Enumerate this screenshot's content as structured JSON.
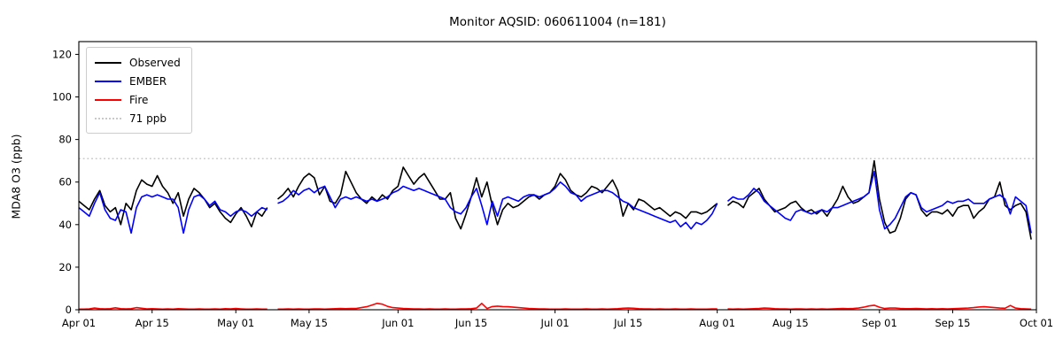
{
  "title": "Monitor AQSID: 060611004 (n=181)",
  "chart_data": {
    "type": "line",
    "title": "Monitor AQSID: 060611004 (n=181)",
    "xlabel": "",
    "ylabel": "MDA8 O3 (ppb)",
    "ylim": [
      0,
      126
    ],
    "yticks": [
      0,
      20,
      40,
      60,
      80,
      100,
      120
    ],
    "grid": false,
    "legend_position": "upper left",
    "x_days_total": 183,
    "x_ticks": [
      {
        "day": 0,
        "label": "Apr 01"
      },
      {
        "day": 14,
        "label": "Apr 15"
      },
      {
        "day": 30,
        "label": "May 01"
      },
      {
        "day": 44,
        "label": "May 15"
      },
      {
        "day": 61,
        "label": "Jun 01"
      },
      {
        "day": 75,
        "label": "Jun 15"
      },
      {
        "day": 91,
        "label": "Jul 01"
      },
      {
        "day": 105,
        "label": "Jul 15"
      },
      {
        "day": 122,
        "label": "Aug 01"
      },
      {
        "day": 136,
        "label": "Aug 15"
      },
      {
        "day": 153,
        "label": "Sep 01"
      },
      {
        "day": 167,
        "label": "Sep 15"
      },
      {
        "day": 183,
        "label": "Oct 01"
      }
    ],
    "threshold_line": {
      "label": "71 ppb",
      "value": 71,
      "color": "#c9c9c9",
      "linestyle": "dotted"
    },
    "series": [
      {
        "name": "Observed",
        "color": "#000000",
        "linestyle": "solid",
        "values": [
          51,
          49,
          47,
          52,
          56,
          49,
          46,
          48,
          40,
          50,
          47,
          56,
          61,
          59,
          58,
          63,
          58,
          55,
          50,
          55,
          44,
          52,
          57,
          55,
          52,
          48,
          50,
          46,
          43,
          41,
          45,
          48,
          44,
          39,
          46,
          44,
          48,
          null,
          52,
          54,
          57,
          53,
          58,
          62,
          64,
          62,
          54,
          58,
          51,
          50,
          54,
          65,
          60,
          55,
          52,
          50,
          53,
          51,
          54,
          52,
          56,
          58,
          67,
          63,
          59,
          62,
          64,
          60,
          56,
          52,
          52,
          55,
          43,
          38,
          45,
          53,
          62,
          53,
          60,
          49,
          40,
          47,
          50,
          48,
          49,
          51,
          53,
          54,
          52,
          54,
          55,
          58,
          64,
          61,
          56,
          54,
          53,
          55,
          58,
          57,
          55,
          58,
          61,
          56,
          44,
          50,
          47,
          52,
          51,
          49,
          47,
          48,
          46,
          44,
          46,
          45,
          43,
          46,
          46,
          45,
          46,
          48,
          50,
          null,
          49,
          51,
          50,
          48,
          53,
          55,
          57,
          52,
          49,
          46,
          47,
          48,
          50,
          51,
          48,
          46,
          47,
          45,
          47,
          44,
          48,
          52,
          58,
          53,
          50,
          51,
          53,
          55,
          70,
          52,
          41,
          36,
          37,
          43,
          52,
          55,
          54,
          47,
          44,
          46,
          46,
          45,
          47,
          44,
          48,
          49,
          49,
          43,
          46,
          48,
          52,
          53,
          60,
          49,
          47,
          49,
          50,
          46,
          33
        ]
      },
      {
        "name": "EMBER",
        "color": "#0000ff",
        "linestyle": "solid",
        "values": [
          48,
          46,
          44,
          50,
          55,
          47,
          43,
          42,
          47,
          46,
          36,
          48,
          53,
          54,
          53,
          54,
          53,
          52,
          52,
          48,
          36,
          47,
          53,
          54,
          52,
          49,
          51,
          47,
          46,
          44,
          46,
          47,
          46,
          44,
          46,
          48,
          47,
          null,
          50,
          51,
          53,
          56,
          54,
          56,
          57,
          55,
          57,
          58,
          53,
          48,
          52,
          53,
          52,
          53,
          52,
          51,
          52,
          51,
          52,
          53,
          55,
          56,
          58,
          57,
          56,
          57,
          56,
          55,
          54,
          53,
          52,
          48,
          46,
          45,
          48,
          53,
          57,
          49,
          40,
          51,
          44,
          52,
          53,
          52,
          51,
          53,
          54,
          54,
          53,
          54,
          55,
          57,
          60,
          58,
          55,
          54,
          51,
          53,
          54,
          55,
          56,
          56,
          55,
          53,
          51,
          50,
          48,
          47,
          46,
          45,
          44,
          43,
          42,
          41,
          42,
          39,
          41,
          38,
          41,
          40,
          42,
          45,
          50,
          null,
          51,
          53,
          52,
          52,
          54,
          57,
          55,
          51,
          49,
          47,
          45,
          43,
          42,
          46,
          47,
          46,
          45,
          46,
          47,
          46,
          48,
          48,
          49,
          50,
          51,
          52,
          53,
          55,
          65,
          47,
          38,
          40,
          43,
          48,
          53,
          55,
          54,
          48,
          46,
          47,
          48,
          49,
          51,
          50,
          51,
          51,
          52,
          50,
          50,
          50,
          52,
          53,
          54,
          52,
          45,
          53,
          51,
          49,
          36
        ]
      },
      {
        "name": "Fire",
        "color": "#ff0000",
        "linestyle": "solid",
        "values": [
          0.3,
          0.3,
          0.4,
          0.8,
          0.5,
          0.4,
          0.5,
          0.9,
          0.5,
          0.4,
          0.5,
          1.0,
          0.7,
          0.4,
          0.5,
          0.4,
          0.3,
          0.4,
          0.3,
          0.5,
          0.4,
          0.3,
          0.3,
          0.4,
          0.3,
          0.3,
          0.4,
          0.3,
          0.5,
          0.4,
          0.6,
          0.4,
          0.3,
          0.3,
          0.4,
          0.3,
          0.3,
          null,
          0.3,
          0.3,
          0.4,
          0.3,
          0.4,
          0.3,
          0.3,
          0.4,
          0.4,
          0.3,
          0.4,
          0.5,
          0.6,
          0.5,
          0.6,
          0.6,
          1.0,
          1.4,
          2.2,
          3.0,
          2.6,
          1.6,
          1.0,
          0.8,
          0.6,
          0.5,
          0.4,
          0.4,
          0.3,
          0.4,
          0.3,
          0.3,
          0.4,
          0.3,
          0.3,
          0.4,
          0.4,
          0.5,
          0.8,
          3.0,
          0.6,
          1.5,
          1.7,
          1.5,
          1.4,
          1.2,
          1.0,
          0.8,
          0.6,
          0.5,
          0.4,
          0.4,
          0.3,
          0.3,
          0.3,
          0.4,
          0.3,
          0.3,
          0.3,
          0.4,
          0.3,
          0.3,
          0.4,
          0.3,
          0.4,
          0.5,
          0.7,
          0.8,
          0.7,
          0.5,
          0.4,
          0.4,
          0.3,
          0.4,
          0.3,
          0.3,
          0.4,
          0.3,
          0.3,
          0.4,
          0.3,
          0.3,
          0.3,
          0.4,
          0.4,
          null,
          0.4,
          0.3,
          0.4,
          0.3,
          0.4,
          0.5,
          0.6,
          0.8,
          0.7,
          0.5,
          0.4,
          0.4,
          0.3,
          0.4,
          0.4,
          0.3,
          0.4,
          0.3,
          0.4,
          0.3,
          0.4,
          0.5,
          0.6,
          0.5,
          0.6,
          0.8,
          1.2,
          1.8,
          2.1,
          1.2,
          0.6,
          0.8,
          0.8,
          0.6,
          0.5,
          0.5,
          0.6,
          0.5,
          0.4,
          0.5,
          0.4,
          0.5,
          0.4,
          0.5,
          0.6,
          0.7,
          0.8,
          1.0,
          1.3,
          1.4,
          1.2,
          1.0,
          0.8,
          0.7,
          2.0,
          0.8,
          0.5,
          0.4,
          0.3
        ]
      }
    ]
  }
}
